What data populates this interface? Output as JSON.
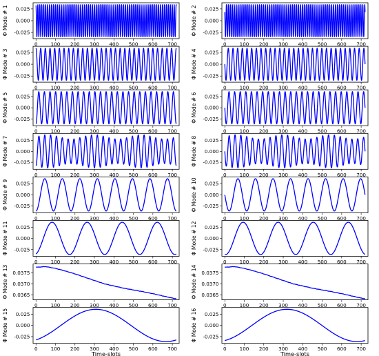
{
  "chart_data": {
    "type": "line",
    "grid": false,
    "line_color": "#0000ff",
    "xlabel": "Time-slots",
    "xlim": [
      -15,
      735
    ],
    "xticks": [
      0,
      100,
      200,
      300,
      400,
      500,
      600,
      700
    ],
    "panels": [
      {
        "ylabel": "Φ Mode # 1",
        "kind": "cos",
        "amp": 0.034,
        "cycles": 72,
        "phase": 0.3,
        "ylim": [
          -0.038,
          0.038
        ],
        "yticks": [
          0.025,
          0.0,
          -0.025
        ],
        "yticklabels": [
          "0.025",
          "0.000",
          "-0.025"
        ]
      },
      {
        "ylabel": "Φ Mode # 2",
        "kind": "cos",
        "amp": 0.034,
        "cycles": 72,
        "phase": 1.0,
        "ylim": [
          -0.038,
          0.038
        ],
        "yticks": [
          0.025,
          0.0,
          -0.025
        ],
        "yticklabels": [
          "0.025",
          "0.000",
          "-0.025"
        ]
      },
      {
        "ylabel": "Φ Mode # 3",
        "kind": "cos",
        "amp": 0.034,
        "cycles": 30,
        "phase": 0.0,
        "ylim": [
          -0.038,
          0.038
        ],
        "yticks": [
          0.025,
          0.0,
          -0.025
        ],
        "yticklabels": [
          "0.025",
          "0.000",
          "-0.025"
        ]
      },
      {
        "ylabel": "Φ Mode # 4",
        "kind": "cos",
        "amp": 0.034,
        "cycles": 30,
        "phase": 1.57,
        "ylim": [
          -0.038,
          0.038
        ],
        "yticks": [
          0.025,
          0.0,
          -0.025
        ],
        "yticklabels": [
          "0.025",
          "0.000",
          "-0.025"
        ]
      },
      {
        "ylabel": "Φ Mode # 5",
        "kind": "cos",
        "amp": 0.036,
        "cycles": 25,
        "phase": 3.14,
        "ylim": [
          -0.04,
          0.04
        ],
        "yticks": [
          0.025,
          0.0,
          -0.025
        ],
        "yticklabels": [
          "0.025",
          "0.000",
          "-0.025"
        ]
      },
      {
        "ylabel": "Φ Mode # 6",
        "kind": "cos",
        "amp": 0.036,
        "cycles": 25,
        "phase": 1.57,
        "ylim": [
          -0.04,
          0.04
        ],
        "yticks": [
          0.025,
          0.0,
          -0.025
        ],
        "yticklabels": [
          "0.025",
          "0.000",
          "-0.025"
        ]
      },
      {
        "ylabel": "Φ Mode # 7",
        "kind": "cos",
        "amp": 0.033,
        "cycles": 24,
        "phase": 3.14,
        "mod": 0.15,
        "ylim": [
          -0.041,
          0.041
        ],
        "yticks": [
          0.025,
          0.0,
          -0.025
        ],
        "yticklabels": [
          "0.025",
          "0.000",
          "-0.025"
        ]
      },
      {
        "ylabel": "Φ Mode # 8",
        "kind": "cos",
        "amp": 0.033,
        "cycles": 24,
        "phase": 1.57,
        "mod": 0.15,
        "ylim": [
          -0.041,
          0.041
        ],
        "yticks": [
          0.025,
          0.0,
          -0.025
        ],
        "yticklabels": [
          "0.025",
          "0.000",
          "-0.025"
        ]
      },
      {
        "ylabel": "Φ Mode # 9",
        "kind": "cos",
        "amp": 0.036,
        "cycles": 8,
        "phase": 3.14,
        "ylim": [
          -0.04,
          0.04
        ],
        "yticks": [
          0.025,
          0.0,
          -0.025
        ],
        "yticklabels": [
          "0.025",
          "0.000",
          "-0.025"
        ]
      },
      {
        "ylabel": "Φ Mode # 10",
        "kind": "cos",
        "amp": 0.036,
        "cycles": 8,
        "phase": 1.57,
        "ylim": [
          -0.04,
          0.04
        ],
        "yticks": [
          0.025,
          0.0,
          -0.025
        ],
        "yticklabels": [
          "0.025",
          "0.000",
          "-0.025"
        ]
      },
      {
        "ylabel": "Φ Mode # 11",
        "kind": "cos",
        "amp": 0.036,
        "cycles": 4,
        "phase": 3.4,
        "ylim": [
          -0.04,
          0.04
        ],
        "yticks": [
          0.025,
          0.0,
          -0.025
        ],
        "yticklabels": [
          "0.025",
          "0.000",
          "-0.025"
        ]
      },
      {
        "ylabel": "Φ Mode # 12",
        "kind": "cos",
        "amp": 0.036,
        "cycles": 4,
        "phase": 3.0,
        "ylim": [
          -0.04,
          0.04
        ],
        "yticks": [
          0.025,
          0.0,
          -0.025
        ],
        "yticklabels": [
          "0.025",
          "0.000",
          "-0.025"
        ]
      },
      {
        "ylabel": "Φ Mode # 13",
        "kind": "decay",
        "x": [
          0,
          50,
          100,
          150,
          200,
          250,
          300,
          350,
          400,
          450,
          500,
          550,
          600,
          650,
          700,
          720
        ],
        "y": [
          0.03775,
          0.03778,
          0.0377,
          0.03758,
          0.03745,
          0.0373,
          0.03715,
          0.037,
          0.0369,
          0.0368,
          0.03672,
          0.03664,
          0.03655,
          0.03645,
          0.03635,
          0.03632
        ],
        "ylim": [
          0.03627,
          0.0379
        ],
        "yticks": [
          0.0375,
          0.037,
          0.0365
        ],
        "yticklabels": [
          "0.0375",
          "0.0370",
          "0.0365"
        ]
      },
      {
        "ylabel": "Φ Mode # 14",
        "kind": "decay",
        "x": [
          0,
          50,
          100,
          150,
          200,
          250,
          300,
          350,
          400,
          450,
          500,
          550,
          600,
          650,
          700,
          720
        ],
        "y": [
          0.03775,
          0.03778,
          0.0377,
          0.03758,
          0.03745,
          0.0373,
          0.03715,
          0.037,
          0.0369,
          0.0368,
          0.03672,
          0.03664,
          0.03655,
          0.03645,
          0.03635,
          0.03632
        ],
        "ylim": [
          0.03627,
          0.0379
        ],
        "yticks": [
          0.0375,
          0.037,
          0.0365
        ],
        "yticklabels": [
          "0.0375",
          "0.0370",
          "0.0365"
        ]
      },
      {
        "ylabel": "Φ Mode # 15",
        "kind": "cos",
        "amp": 0.036,
        "cycles": 1,
        "phase": 3.6,
        "ylim": [
          -0.04,
          0.04
        ],
        "yticks": [
          0.025,
          0.0,
          -0.025
        ],
        "yticklabels": [
          "0.025",
          "0.000",
          "-0.025"
        ]
      },
      {
        "ylabel": "Φ Mode # 16",
        "kind": "cos",
        "amp": 0.036,
        "cycles": 1,
        "phase": 3.5,
        "ylim": [
          -0.04,
          0.04
        ],
        "yticks": [
          0.025,
          0.0,
          -0.025
        ],
        "yticklabels": [
          "0.025",
          "0.000",
          "-0.025"
        ]
      }
    ]
  }
}
